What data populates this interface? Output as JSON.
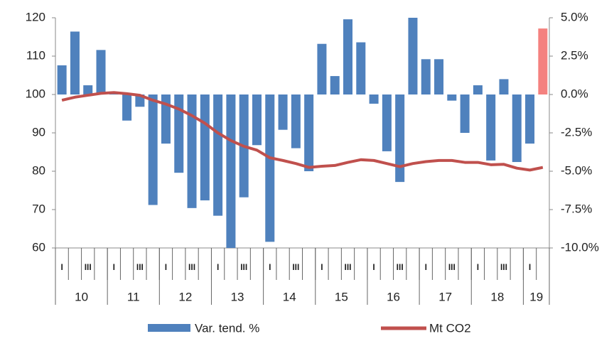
{
  "chart_data": {
    "type": "bar_line",
    "categories": [
      "I",
      null,
      "III",
      null,
      "I",
      null,
      "III",
      null,
      "I",
      null,
      "III",
      null,
      "I",
      null,
      "III",
      null,
      "I",
      null,
      "III",
      null,
      "I",
      null,
      "III",
      null,
      "I",
      null,
      "III",
      null,
      "I",
      null,
      "III",
      null,
      "I",
      null,
      "III",
      null,
      "I",
      null
    ],
    "year_labels": [
      "10",
      "11",
      "12",
      "13",
      "14",
      "15",
      "16",
      "17",
      "18",
      "19"
    ],
    "series": [
      {
        "name": "Var. tend. %",
        "type": "bar",
        "axis": "y2",
        "color": "#4f81bd",
        "colors": [
          "#4f81bd",
          "#4f81bd",
          "#4f81bd",
          "#4f81bd",
          "#4f81bd",
          "#4f81bd",
          "#4f81bd",
          "#4f81bd",
          "#4f81bd",
          "#4f81bd",
          "#4f81bd",
          "#4f81bd",
          "#4f81bd",
          "#4f81bd",
          "#4f81bd",
          "#4f81bd",
          "#4f81bd",
          "#4f81bd",
          "#4f81bd",
          "#4f81bd",
          "#4f81bd",
          "#4f81bd",
          "#4f81bd",
          "#4f81bd",
          "#4f81bd",
          "#4f81bd",
          "#4f81bd",
          "#4f81bd",
          "#4f81bd",
          "#4f81bd",
          "#4f81bd",
          "#4f81bd",
          "#4f81bd",
          "#4f81bd",
          "#4f81bd",
          "#4f81bd",
          "#4f81bd",
          "#f4817f"
        ],
        "values": [
          1.9,
          4.1,
          0.6,
          2.9,
          0.1,
          -1.7,
          -0.8,
          -7.2,
          -3.2,
          -5.1,
          -7.4,
          -6.9,
          -7.9,
          -10,
          -6.7,
          -3.3,
          -9.6,
          -2.3,
          -3.5,
          -5.0,
          3.3,
          1.2,
          4.9,
          3.4,
          -0.6,
          -3.7,
          -5.7,
          5.0,
          2.3,
          2.3,
          -0.4,
          -2.5,
          0.6,
          -4.3,
          1.0,
          -4.4,
          -3.2,
          4.3
        ]
      },
      {
        "name": "Mt CO2",
        "type": "line",
        "axis": "y",
        "color": "#c0504d",
        "values": [
          98.5,
          99.3,
          99.8,
          100.3,
          100.5,
          100.2,
          99.8,
          98.5,
          97.5,
          96.2,
          94.5,
          92.5,
          90,
          88,
          86.5,
          85.5,
          83.5,
          82.8,
          82,
          81,
          81.3,
          81.5,
          82.3,
          83,
          82.8,
          82,
          81.2,
          82,
          82.5,
          82.8,
          82.8,
          82.3,
          82.3,
          81.7,
          81.8,
          80.8,
          80.3,
          81
        ]
      }
    ],
    "ylim": [
      60,
      120
    ],
    "yticks": [
      60,
      70,
      80,
      90,
      100,
      110,
      120
    ],
    "y2lim": [
      -10,
      5
    ],
    "y2ticks": [
      {
        "value": -10,
        "label": "-10.0%"
      },
      {
        "value": -7.5,
        "label": "-7.5%"
      },
      {
        "value": -5,
        "label": "-5.0%"
      },
      {
        "value": -2.5,
        "label": "-2.5%"
      },
      {
        "value": 0,
        "label": "0.0%"
      },
      {
        "value": 2.5,
        "label": "2.5%"
      },
      {
        "value": 5,
        "label": "5.0%"
      }
    ],
    "legend": "bottom"
  }
}
